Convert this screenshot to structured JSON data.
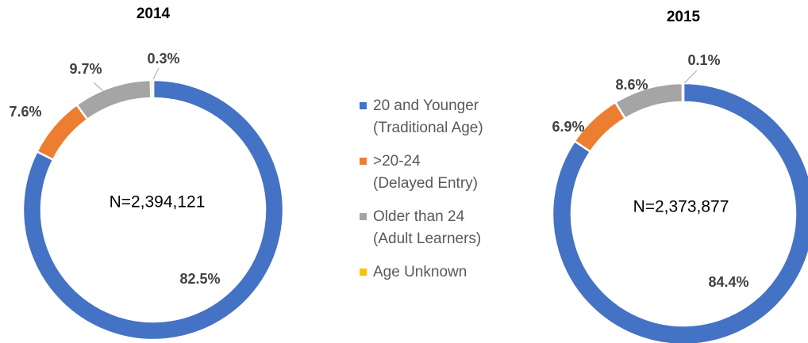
{
  "chart_data": [
    {
      "type": "donut",
      "title": "2014",
      "annotation": "N=2,394,121",
      "values": [
        82.5,
        7.6,
        9.7,
        0.3
      ],
      "value_labels": [
        "82.5%",
        "7.6%",
        "9.7%",
        "0.3%"
      ]
    },
    {
      "type": "donut",
      "title": "2015",
      "annotation": "N=2,373,877",
      "values": [
        84.4,
        6.9,
        8.6,
        0.1
      ],
      "value_labels": [
        "84.4%",
        "6.9%",
        "8.6%",
        "0.1%"
      ]
    }
  ],
  "legend": {
    "categories": [
      "20 and Younger\n(Traditional Age)",
      ">20-24\n(Delayed Entry)",
      "Older than 24\n(Adult Learners)",
      "Age Unknown"
    ],
    "colors": [
      "#4472c4",
      "#ed7d31",
      "#a5a5a5",
      "#ffc000"
    ]
  }
}
